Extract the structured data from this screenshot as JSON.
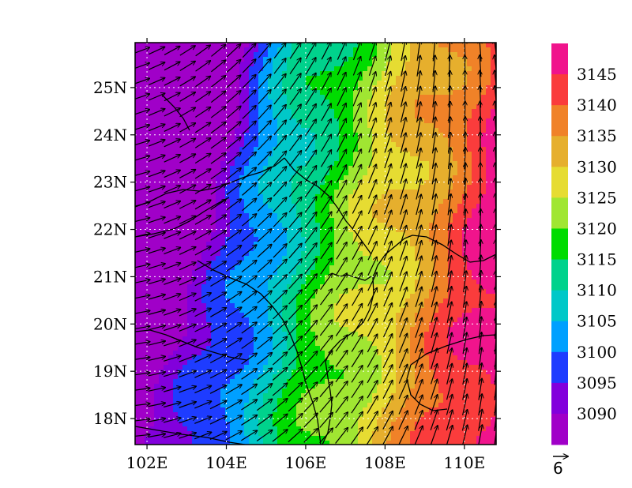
{
  "map": {
    "lon_range": [
      101.7,
      110.8
    ],
    "lat_range": [
      17.45,
      25.95
    ],
    "lon_ticks": [
      "102E",
      "104E",
      "106E",
      "108E",
      "110E"
    ],
    "lon_tick_values": [
      102,
      104,
      106,
      108,
      110
    ],
    "lat_ticks": [
      "18N",
      "19N",
      "20N",
      "21N",
      "22N",
      "23N",
      "24N",
      "25N"
    ],
    "lat_tick_values": [
      18,
      19,
      20,
      21,
      22,
      23,
      24,
      25
    ],
    "gridlines": true,
    "field": "geopotential height (contour fill)",
    "vectors": "wind",
    "reference_vector": "6"
  },
  "colorbar": {
    "labels": [
      "3145",
      "3140",
      "3135",
      "3130",
      "3125",
      "3120",
      "3115",
      "3110",
      "3105",
      "3100",
      "3095",
      "3090"
    ],
    "colors": [
      "#f0148c",
      "#fa3c3c",
      "#f08228",
      "#e6af2d",
      "#e6dc32",
      "#a0e632",
      "#00dc00",
      "#00d28c",
      "#00c8c8",
      "#00a0ff",
      "#1e3cff",
      "#8200dc",
      "#a000c8"
    ],
    "colors_order": "top-to-bottom"
  }
}
